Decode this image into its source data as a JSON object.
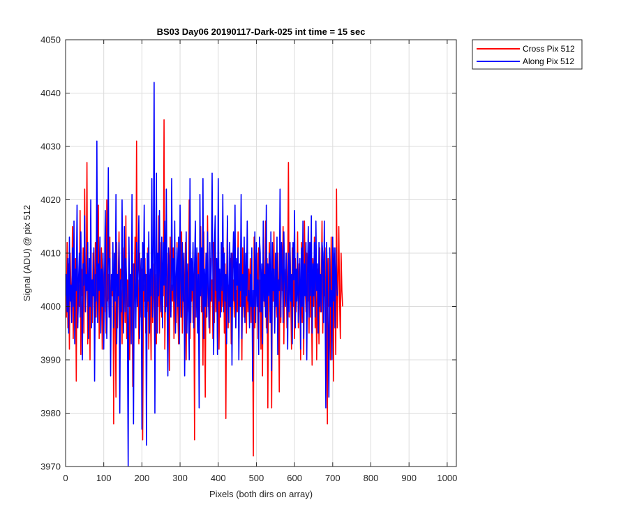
{
  "chart_data": {
    "type": "line",
    "title": "BS03 Day06 20190117-Dark-025 int time = 15 sec",
    "xlabel": "Pixels (both dirs on array)",
    "ylabel": "Signal (ADU) @ pix 512",
    "xlim": [
      0,
      1024
    ],
    "ylim": [
      3970,
      4050
    ],
    "xticks": [
      "0",
      "100",
      "200",
      "300",
      "400",
      "500",
      "600",
      "700",
      "800",
      "900",
      "1000"
    ],
    "yticks": [
      "3970",
      "3980",
      "3990",
      "4000",
      "4010",
      "4020",
      "4030",
      "4040",
      "4050"
    ],
    "grid": true,
    "legend_position": "outside-top-right",
    "sample_spacing": 2,
    "series": [
      {
        "name": "Cross Pix 512",
        "color": "#ff0000",
        "y": [
          4005,
          3998,
          4012,
          3996,
          4008,
          3992,
          4010,
          4003,
          3999,
          4015,
          3994,
          4006,
          4001,
          4009,
          3986,
          4013,
          3997,
          4004,
          4000,
          4018,
          3991,
          4007,
          4002,
          4011,
          3995,
          4022,
          3999,
          4005,
          4027,
          3993,
          4003,
          4008,
          3990,
          4014,
          4001,
          3997,
          4010,
          4004,
          3996,
          4012,
          3998,
          4007,
          4002,
          4019,
          3994,
          4006,
          4000,
          4011,
          3992,
          4009,
          4003,
          3999,
          4015,
          3995,
          4020,
          4001,
          4006,
          3998,
          4013,
          3991,
          4005,
          4002,
          4010,
          3978,
          4008,
          4000,
          3983,
          4012,
          3996,
          4004,
          4014,
          3999,
          4007,
          4003,
          3993,
          4011,
          4001,
          4006,
          3997,
          4017,
          3994,
          4005,
          4000,
          4009,
          3990,
          4003,
          3999,
          4012,
          3985,
          4008,
          4002,
          4013,
          3996,
          4031,
          4000,
          4005,
          3993,
          4010,
          4002,
          3998,
          4007,
          3975,
          4004,
          4001,
          4009,
          3995,
          4006,
          3999,
          4011,
          3992,
          4005,
          4003,
          3990,
          4014,
          3997,
          4008,
          4001,
          3990,
          4006,
          3993,
          4010,
          4000,
          4017,
          3995,
          4012,
          4004,
          3998,
          4007,
          4002,
          4035,
          3992,
          4005,
          4000,
          4010,
          3996,
          4008,
          3988,
          4013,
          3999,
          4004,
          4001,
          4011,
          3994,
          4006,
          4003,
          3997,
          4012,
          4000,
          3993,
          4009,
          4005,
          3998,
          4014,
          3995,
          4007,
          4002,
          3996,
          4012,
          3990,
          4006,
          4003,
          3999,
          4020,
          3994,
          4005,
          4001,
          4008,
          3997,
          4003,
          3975,
          4011,
          4000,
          4006,
          3996,
          4010,
          3993,
          4004,
          4015,
          3999,
          4007,
          3989,
          4014,
          4002,
          3983,
          4006,
          3998,
          4017,
          4000,
          4003,
          3995,
          4009,
          4001,
          4005,
          3994,
          4012,
          3997,
          4013,
          3999,
          4007,
          3994,
          4010,
          3992,
          4002,
          4004,
          3999,
          4006,
          4000,
          4011,
          3995,
          4008,
          3979,
          4005,
          4016,
          3996,
          4004,
          4000,
          4009,
          3993,
          4010,
          4001,
          4005,
          3998,
          4012,
          3996,
          4003,
          3999,
          4014,
          3994,
          4006,
          4000,
          4008,
          3990,
          4011,
          4002,
          3998,
          4005,
          4003,
          3995,
          4010,
          3999,
          4007,
          4001,
          4009,
          3997,
          4004,
          4000,
          3972,
          4013,
          3996,
          4006,
          4002,
          4010,
          3994,
          4011,
          3999,
          4005,
          3992,
          4007,
          3987,
          4013,
          4003,
          4000,
          4016,
          3996,
          4009,
          3981,
          4005,
          4012,
          3999,
          4003,
          3981,
          4008,
          4001,
          4014,
          3995,
          4006,
          4002,
          3998,
          4010,
          4000,
          3984,
          4013,
          3997,
          4008,
          4003,
          4015,
          3993,
          4007,
          4001,
          4010,
          3996,
          4005,
          4027,
          3998,
          4012,
          4002,
          3992,
          4011,
          4000,
          4006,
          3994,
          4009,
          3999,
          4003,
          4014,
          3996,
          4008,
          4001,
          3990,
          4012,
          3997,
          4007,
          3991,
          4016,
          4004,
          3999,
          4010,
          4001,
          4006,
          3995,
          4012,
          3998,
          4004,
          3989,
          4009,
          4000,
          4013,
          3996,
          4006,
          3990,
          4004,
          4007,
          3993,
          4011,
          3999,
          4003,
          4016,
          3995,
          4008,
          4002,
          4011,
          3992,
          4005,
          3978,
          4009,
          4000,
          4003,
          3990,
          4013,
          3997,
          4006,
          3986,
          4010,
          4004,
          3991,
          4022,
          3996,
          4005,
          4015,
          4001,
          3994,
          4010,
          4003,
          4000
        ],
        "values_estimated": true
      },
      {
        "name": "Along Pix 512",
        "color": "#0000ff",
        "y": [
          4002,
          4006,
          3999,
          4009,
          3995,
          4013,
          4001,
          4004,
          3997,
          4011,
          4000,
          4016,
          3993,
          4007,
          4003,
          4019,
          3996,
          4005,
          4010,
          3998,
          4014,
          4001,
          3990,
          4008,
          4004,
          4017,
          3999,
          4006,
          4003,
          4012,
          3994,
          4009,
          4000,
          4020,
          3996,
          4005,
          4002,
          4011,
          3986,
          4006,
          4001,
          4031,
          3997,
          4008,
          4003,
          4013,
          3995,
          4007,
          4000,
          4010,
          3992,
          4006,
          4018,
          4001,
          3994,
          4005,
          4026,
          3998,
          4009,
          3987,
          4006,
          4003,
          4012,
          3996,
          4010,
          4001,
          4021,
          3993,
          4006,
          4002,
          4012,
          3980,
          4005,
          3999,
          4020,
          4003,
          3995,
          4015,
          3999,
          4009,
          4004,
          3997,
          3970,
          4013,
          4000,
          4006,
          3993,
          4021,
          4001,
          3978,
          4008,
          4004,
          3996,
          4012,
          4000,
          4007,
          4017,
          3994,
          4005,
          4009,
          3977,
          4012,
          4003,
          4019,
          3998,
          4006,
          3974,
          4010,
          4001,
          4014,
          3995,
          4007,
          4002,
          4024,
          3998,
          4011,
          4042,
          3980,
          4008,
          4025,
          3995,
          4010,
          4002,
          4018,
          4003,
          3999,
          4013,
          3996,
          4012,
          4004,
          4016,
          3999,
          4022,
          4001,
          3987,
          4011,
          4008,
          4000,
          3998,
          4024,
          4003,
          4009,
          4001,
          4016,
          3995,
          4006,
          4011,
          4000,
          4013,
          3993,
          4019,
          4005,
          3998,
          4012,
          4001,
          4010,
          3987,
          4003,
          4014,
          3995,
          4008,
          4000,
          3990,
          4024,
          3997,
          4009,
          4003,
          4012,
          3996,
          4008,
          4016,
          3998,
          4011,
          3995,
          4006,
          3981,
          4021,
          4002,
          4011,
          3999,
          4024,
          3994,
          4007,
          4000,
          4010,
          3998,
          4014,
          4003,
          3996,
          4012,
          4001,
          4008,
          4025,
          4005,
          3991,
          4011,
          4017,
          4003,
          4009,
          3991,
          4024,
          4001,
          4007,
          3998,
          4012,
          4003,
          4021,
          3999,
          4010,
          4001,
          4006,
          3993,
          4017,
          4003,
          3997,
          4012,
          4000,
          4010,
          3989,
          4007,
          4014,
          4001,
          4019,
          3996,
          4009,
          4004,
          4011,
          3990,
          4008,
          4003,
          4021,
          3994,
          4006,
          4000,
          4013,
          3997,
          4010,
          4002,
          4016,
          4001,
          4003,
          3996,
          4006,
          4000,
          4011,
          3986,
          4003,
          4000,
          4014,
          3997,
          4012,
          4000,
          4005,
          3991,
          4013,
          4010,
          3999,
          4008,
          3993,
          4016,
          4001,
          4006,
          3998,
          4019,
          3995,
          4008,
          4002,
          4010,
          3997,
          4014,
          3988,
          4012,
          4003,
          4007,
          3995,
          4010,
          4000,
          4013,
          3991,
          4005,
          4003,
          4022,
          3998,
          4012,
          4007,
          3997,
          4014,
          4005,
          4000,
          4010,
          4002,
          3992,
          4010,
          3999,
          4012,
          4001,
          4006,
          3993,
          4012,
          4005,
          4018,
          3996,
          4007,
          4001,
          4010,
          3997,
          4004,
          4009,
          3992,
          4011,
          4000,
          4016,
          3994,
          4008,
          4002,
          4012,
          3990,
          4006,
          4015,
          3998,
          4012,
          4002,
          4017,
          3995,
          4008,
          4002,
          4012,
          3998,
          4016,
          4003,
          4008,
          3995,
          4012,
          4000,
          4006,
          3999,
          4012,
          4010,
          3997,
          4016,
          4000,
          3981,
          4012,
          4005,
          3996,
          3983,
          4011,
          4000,
          4003,
          3990,
          4013,
          4001,
          4011,
          3996,
          4011,
          4005,
          4002
        ]
      }
    ]
  }
}
